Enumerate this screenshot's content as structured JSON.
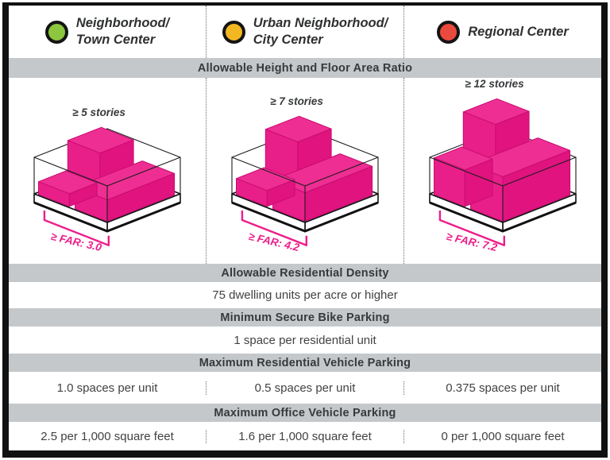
{
  "colors": {
    "pink": "#ec1e8a",
    "pink_top": "#ee2e92",
    "pink_left": "#e91f89",
    "pink_right": "#e0137f",
    "pink_edge": "#c70d72",
    "banner_bg": "#c5c8ca",
    "frame": "#111111",
    "wire": "#1c1c1c",
    "dot_green": "#8cc63f",
    "dot_yellow": "#f3b722",
    "dot_red": "#ea4a3d"
  },
  "columns": [
    {
      "key": "neighborhood",
      "dot_color": "#8cc63f",
      "dot_name": "green-dot-icon",
      "label_line1": "Neighborhood/",
      "label_line2": "Town Center",
      "stories": "≥ 5 stories",
      "far": "≥ FAR: 3.0",
      "res_parking": "1.0 spaces per unit",
      "office_parking": "2.5 per 1,000 square feet",
      "diagram": {
        "tower": 52,
        "low": 16,
        "wide": 27
      }
    },
    {
      "key": "urban",
      "dot_color": "#f3b722",
      "dot_name": "yellow-dot-icon",
      "label_line1": "Urban Neighborhood/",
      "label_line2": "City Center",
      "stories": "≥ 7 stories",
      "far": "≥ FAR: 4.2",
      "res_parking": "0.5 spaces per unit",
      "office_parking": "1.6 per 1,000 square feet",
      "diagram": {
        "tower": 66,
        "low": 20,
        "wide": 36
      }
    },
    {
      "key": "regional",
      "dot_color": "#ea4a3d",
      "dot_name": "red-dot-icon",
      "label_line1": "Regional Center",
      "label_line2": "",
      "stories": "≥ 12 stories",
      "far": "≥ FAR: 7.2",
      "res_parking": "0.375 spaces per unit",
      "office_parking": "0 per 1,000 square feet",
      "diagram": {
        "tower": 88,
        "low": 46,
        "wide": 56
      }
    }
  ],
  "rows": {
    "height_far_banner": "Allowable Height and Floor Area Ratio",
    "density_banner": "Allowable Residential Density",
    "density_value": "75 dwelling units per acre or higher",
    "bike_banner": "Minimum Secure Bike Parking",
    "bike_value": "1 space per residential unit",
    "res_parking_banner": "Maximum Residential Vehicle Parking",
    "office_parking_banner": "Maximum Office Vehicle Parking"
  }
}
